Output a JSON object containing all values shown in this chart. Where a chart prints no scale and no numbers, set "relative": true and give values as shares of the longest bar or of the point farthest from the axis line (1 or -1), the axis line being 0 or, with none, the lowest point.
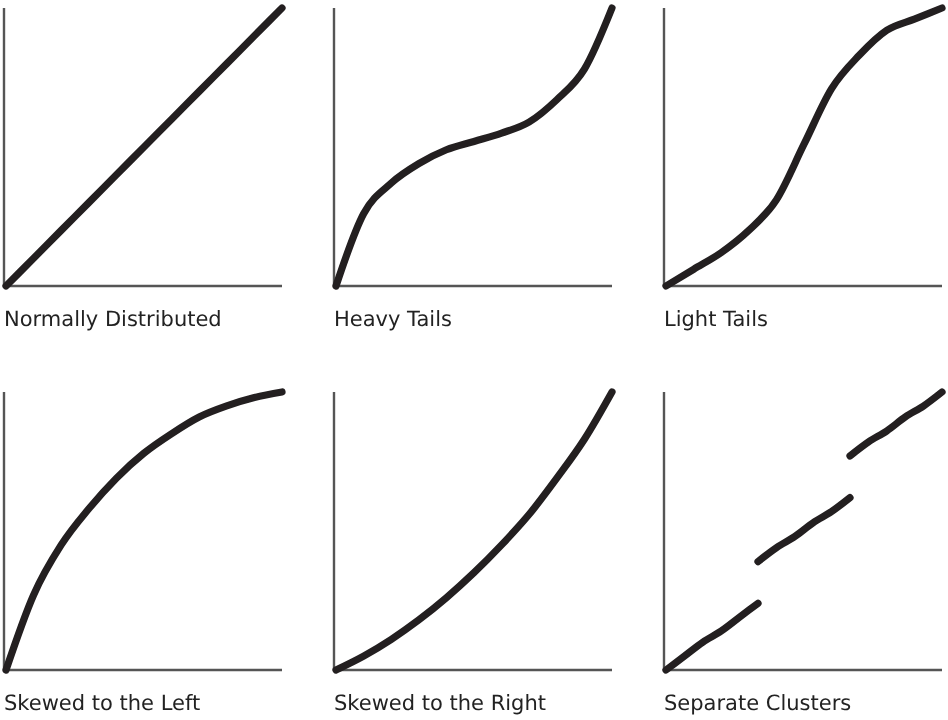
{
  "chart_data": [
    {
      "type": "line",
      "relative": true,
      "xlabel": "Normally Distributed",
      "categories": [
        null,
        null,
        null,
        null,
        null,
        null,
        null,
        null,
        null,
        null,
        null
      ],
      "series": [
        {
          "color": "#231f20",
          "values": [
            0,
            0.1,
            0.2,
            0.3,
            0.4,
            0.5,
            0.6,
            0.7,
            0.8,
            0.9,
            1.0
          ]
        }
      ]
    },
    {
      "type": "line",
      "relative": true,
      "xlabel": "Heavy Tails",
      "categories": [
        null,
        null,
        null,
        null,
        null,
        null,
        null,
        null,
        null,
        null,
        null
      ],
      "series": [
        {
          "color": "#231f20",
          "values": [
            0,
            0.26,
            0.37,
            0.44,
            0.49,
            0.52,
            0.55,
            0.59,
            0.67,
            0.78,
            1.0
          ]
        }
      ]
    },
    {
      "type": "line",
      "relative": true,
      "xlabel": "Light Tails",
      "categories": [
        null,
        null,
        null,
        null,
        null,
        null,
        null,
        null,
        null,
        null,
        null
      ],
      "series": [
        {
          "color": "#231f20",
          "values": [
            0,
            0.06,
            0.12,
            0.2,
            0.31,
            0.51,
            0.71,
            0.83,
            0.92,
            0.96,
            1.0
          ]
        }
      ]
    },
    {
      "type": "line",
      "relative": true,
      "xlabel": "Skewed to the Left",
      "categories": [
        null,
        null,
        null,
        null,
        null,
        null,
        null,
        null,
        null,
        null,
        null
      ],
      "series": [
        {
          "color": "#231f20",
          "values": [
            0,
            0.27,
            0.45,
            0.58,
            0.69,
            0.78,
            0.85,
            0.91,
            0.95,
            0.98,
            1.0
          ]
        }
      ]
    },
    {
      "type": "line",
      "relative": true,
      "xlabel": "Skewed to the Right",
      "categories": [
        null,
        null,
        null,
        null,
        null,
        null,
        null,
        null,
        null,
        null,
        null
      ],
      "series": [
        {
          "color": "#231f20",
          "values": [
            0,
            0.05,
            0.11,
            0.18,
            0.26,
            0.35,
            0.45,
            0.56,
            0.69,
            0.83,
            1.0
          ]
        }
      ]
    },
    {
      "type": "line",
      "relative": true,
      "xlabel": "Separate Clusters",
      "categories": [
        null,
        null,
        null,
        null,
        null,
        null,
        null,
        null,
        null,
        null,
        null,
        null,
        null,
        null,
        null,
        null
      ],
      "series": [
        {
          "color": "#231f20",
          "values": [
            0,
            0.05,
            0.1,
            0.14,
            0.19,
            0.24,
            null,
            null,
            null,
            null,
            null,
            null,
            null,
            null,
            null,
            null
          ]
        },
        {
          "color": "#231f20",
          "values": [
            null,
            null,
            null,
            null,
            null,
            0.39,
            0.44,
            0.48,
            0.53,
            0.57,
            0.62,
            null,
            null,
            null,
            null,
            null
          ]
        },
        {
          "color": "#231f20",
          "values": [
            null,
            null,
            null,
            null,
            null,
            null,
            null,
            null,
            null,
            null,
            0.77,
            0.82,
            0.86,
            0.91,
            0.95,
            1.0
          ]
        }
      ]
    }
  ]
}
